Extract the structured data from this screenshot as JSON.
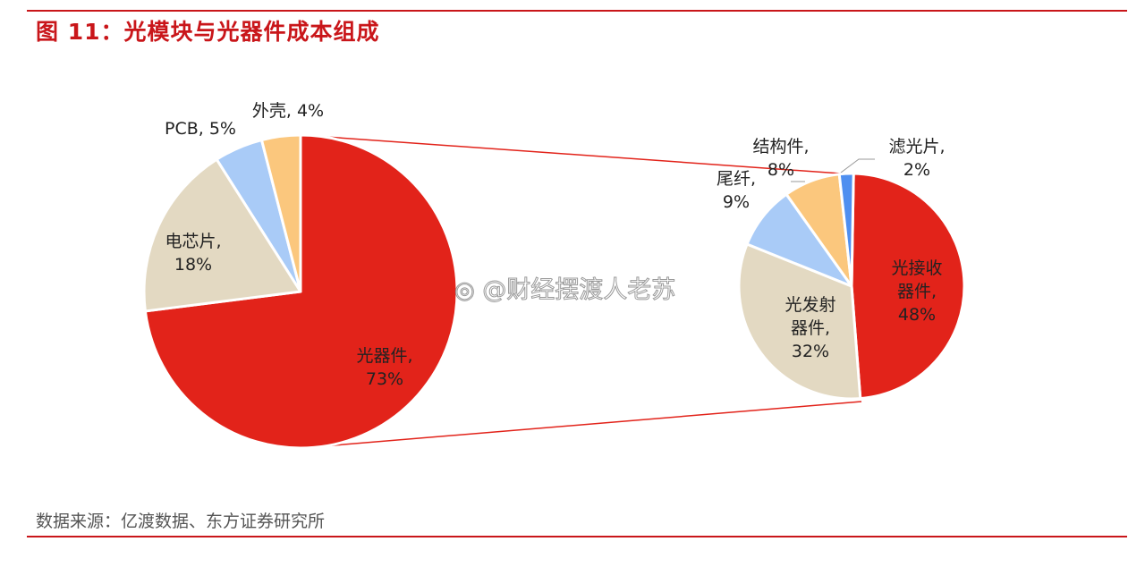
{
  "title": "图 11：光模块与光器件成本组成",
  "source": "数据来源：亿渡数据、东方证券研究所",
  "watermark": "@财经摆渡人老苏",
  "colors": {
    "accent": "#c9161a",
    "red": "#e2231a",
    "beige": "#e3d9c2",
    "blue": "#a9cbf7",
    "orange": "#fbc77d",
    "blue_dark": "#4f8ff0"
  },
  "chart_data": [
    {
      "type": "pie",
      "title": "",
      "slices": [
        {
          "label": "光器件",
          "value": 73,
          "display": "73%",
          "color": "#e2231a"
        },
        {
          "label": "电芯片",
          "value": 18,
          "display": "18%",
          "color": "#e3d9c2"
        },
        {
          "label": "PCB",
          "value": 5,
          "display": "5%",
          "color": "#a9cbf7"
        },
        {
          "label": "外壳",
          "value": 4,
          "display": "4%",
          "color": "#fbc77d"
        }
      ]
    },
    {
      "type": "pie",
      "title": "",
      "slices": [
        {
          "label": "光接收器件",
          "value": 48,
          "display": "48%",
          "color": "#e2231a"
        },
        {
          "label": "光发射器件",
          "value": 32,
          "display": "32%",
          "color": "#e3d9c2"
        },
        {
          "label": "尾纤",
          "value": 9,
          "display": "9%",
          "color": "#a9cbf7"
        },
        {
          "label": "结构件",
          "value": 8,
          "display": "8%",
          "color": "#fbc77d"
        },
        {
          "label": "滤光片",
          "value": 2,
          "display": "2%",
          "color": "#4f8ff0"
        }
      ]
    }
  ],
  "labels": {
    "left": [
      {
        "lines": [
          "光器件,",
          "73%"
        ]
      },
      {
        "lines": [
          "电芯片,",
          "18%"
        ]
      },
      {
        "lines": [
          "PCB, 5%"
        ]
      },
      {
        "lines": [
          "外壳, 4%"
        ]
      }
    ],
    "right": [
      {
        "lines": [
          "光接收",
          "器件,",
          "48%"
        ]
      },
      {
        "lines": [
          "光发射",
          "器件,",
          "32%"
        ]
      },
      {
        "lines": [
          "尾纤,",
          "9%"
        ]
      },
      {
        "lines": [
          "结构件,",
          "8%"
        ]
      },
      {
        "lines": [
          "滤光片,",
          "2%"
        ]
      }
    ]
  }
}
